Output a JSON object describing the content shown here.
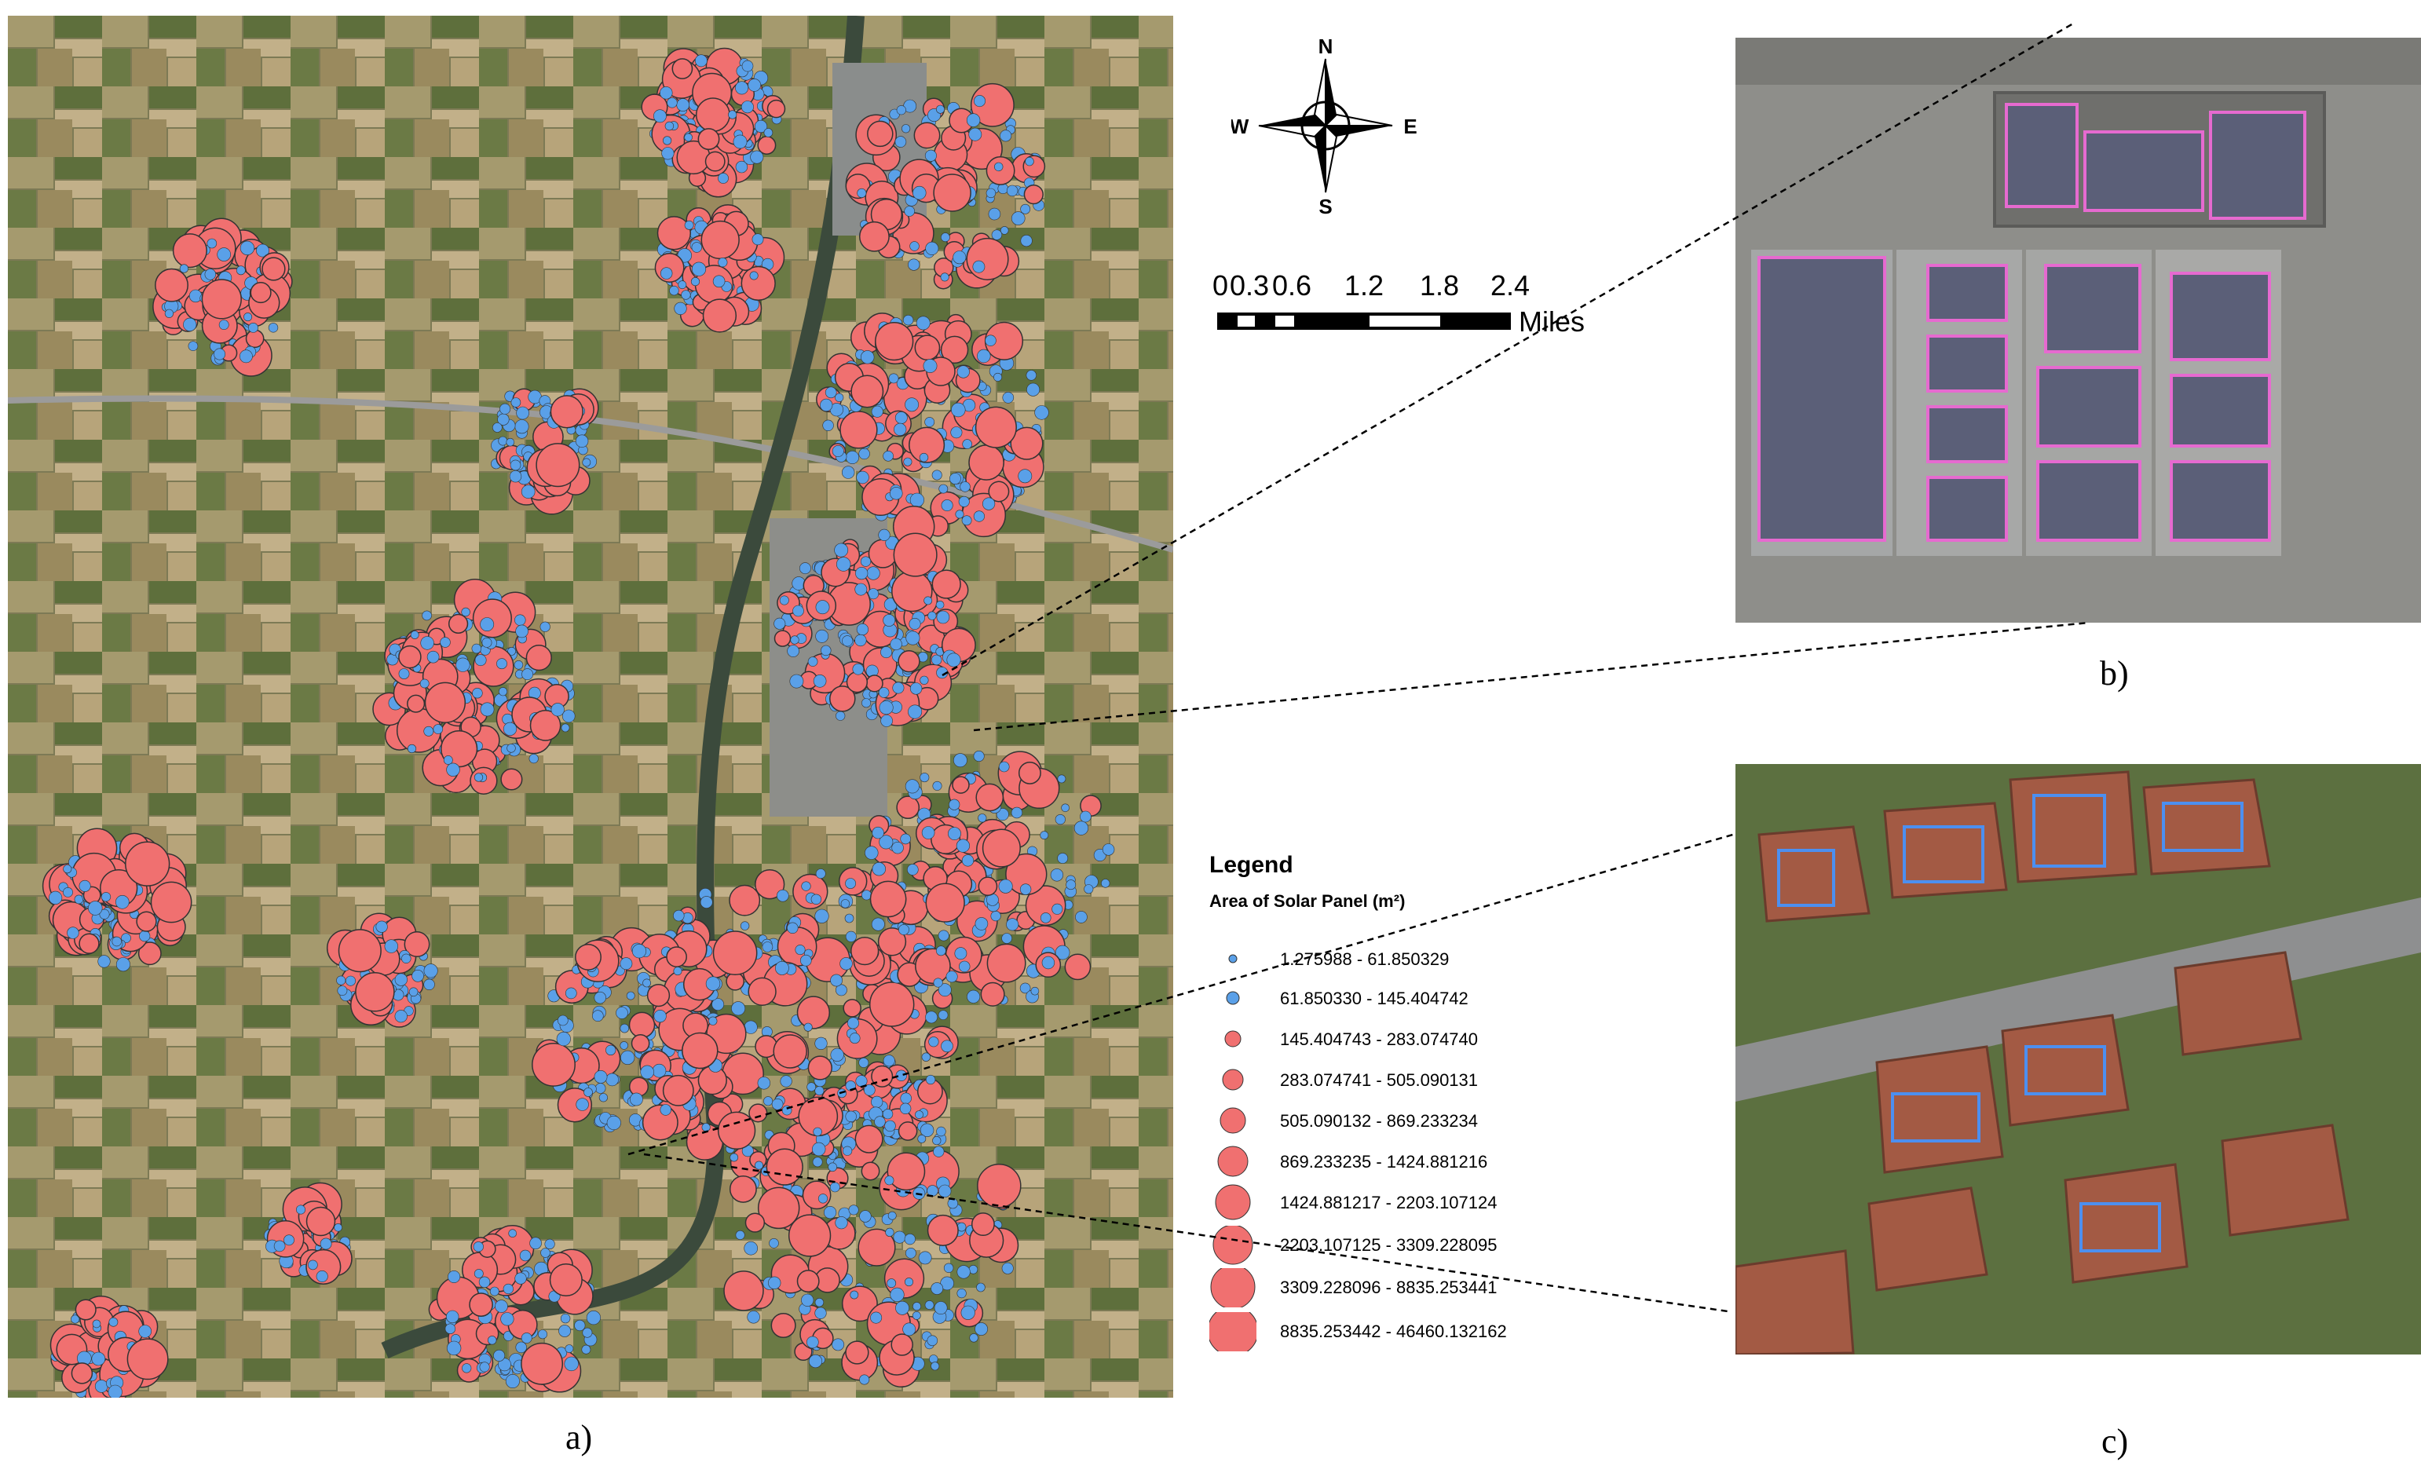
{
  "captions": {
    "a": "a)",
    "b": "b)",
    "c": "c)"
  },
  "compass": {
    "n": "N",
    "s": "S",
    "e": "E",
    "w": "W"
  },
  "scale_bar": {
    "ticks": [
      "0",
      "0.3",
      "0.6",
      "1.2",
      "1.8",
      "2.4"
    ],
    "unit": "Miles"
  },
  "legend": {
    "title": "Legend",
    "subtitle": "Area of Solar Panel (m²)",
    "classes": [
      {
        "label": "1.275988 - 61.850329",
        "color": "#5aa0e8"
      },
      {
        "label": "61.850330 - 145.404742",
        "color": "#5aa0e8"
      },
      {
        "label": "145.404743 - 283.074740",
        "color": "#f07070"
      },
      {
        "label": "283.074741 - 505.090131",
        "color": "#f07070"
      },
      {
        "label": "505.090132 - 869.233234",
        "color": "#f07070"
      },
      {
        "label": "869.233235 - 1424.881216",
        "color": "#f07070"
      },
      {
        "label": "1424.881217 - 2203.107124",
        "color": "#f07070"
      },
      {
        "label": "2203.107125 - 3309.228095",
        "color": "#f07070"
      },
      {
        "label": "3309.228096 - 8835.253441",
        "color": "#f07070"
      },
      {
        "label": "8835.253442 - 46460.132162",
        "color": "#f07070"
      }
    ]
  },
  "colors": {
    "small_panel": "#5aa0e8",
    "large_panel": "#f07070",
    "panel_outline_b": "#e66ad0",
    "panel_outline_c": "#4c8ff0"
  }
}
